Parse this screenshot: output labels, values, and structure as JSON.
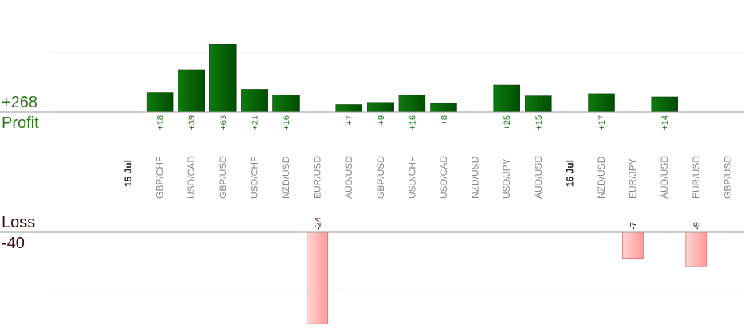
{
  "chart_data": {
    "type": "bar",
    "title": "",
    "summary": {
      "profit_total": "+268",
      "profit_label": "Profit",
      "loss_label": "Loss",
      "loss_total": "-40"
    },
    "colors": {
      "profit": "#0a6a0a",
      "loss": "#ffb0b0",
      "profit_text": "#2a7a1a",
      "loss_text": "#3a0a0a",
      "pair_label": "#888888",
      "axis": "#999999",
      "grid": "#eeeeee"
    },
    "profit_gridline": 55,
    "loss_gridline": -15,
    "categories": [
      {
        "type": "date",
        "label": "15 Jul"
      },
      {
        "type": "pair",
        "label": "GBP/CHF",
        "value": 18,
        "value_label": "+18"
      },
      {
        "type": "pair",
        "label": "USD/CAD",
        "value": 39,
        "value_label": "+39"
      },
      {
        "type": "pair",
        "label": "GBP/USD",
        "value": 63,
        "value_label": "+63"
      },
      {
        "type": "pair",
        "label": "USD/CHF",
        "value": 21,
        "value_label": "+21"
      },
      {
        "type": "pair",
        "label": "NZD/USD",
        "value": 16,
        "value_label": "+16"
      },
      {
        "type": "pair",
        "label": "EUR/USD",
        "value": -24,
        "value_label": "-24"
      },
      {
        "type": "pair",
        "label": "AUD/USD",
        "value": 7,
        "value_label": "+7"
      },
      {
        "type": "pair",
        "label": "GBP/USD",
        "value": 9,
        "value_label": "+9"
      },
      {
        "type": "pair",
        "label": "USD/CHF",
        "value": 16,
        "value_label": "+16"
      },
      {
        "type": "pair",
        "label": "USD/CAD",
        "value": 8,
        "value_label": "+8"
      },
      {
        "type": "pair",
        "label": "NZD/USD",
        "value": 0,
        "value_label": ""
      },
      {
        "type": "pair",
        "label": "USD/JPY",
        "value": 25,
        "value_label": "+25"
      },
      {
        "type": "pair",
        "label": "AUD/USD",
        "value": 15,
        "value_label": "+15"
      },
      {
        "type": "date",
        "label": "16 Jul"
      },
      {
        "type": "pair",
        "label": "NZD/USD",
        "value": 17,
        "value_label": "+17"
      },
      {
        "type": "pair",
        "label": "EUR/JPY",
        "value": -7,
        "value_label": "-7"
      },
      {
        "type": "pair",
        "label": "AUD/USD",
        "value": 14,
        "value_label": "+14"
      },
      {
        "type": "pair",
        "label": "EUR/USD",
        "value": -9,
        "value_label": "-9"
      },
      {
        "type": "pair",
        "label": "GBP/USD",
        "value": 0,
        "value_label": ""
      }
    ]
  }
}
